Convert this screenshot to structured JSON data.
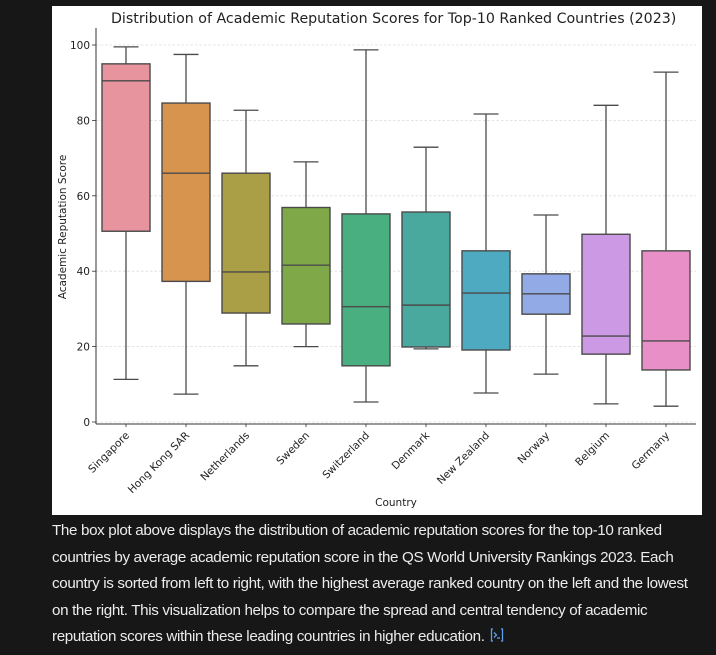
{
  "chart_data": {
    "type": "box",
    "title": "Distribution of Academic Reputation Scores for Top-10 Ranked Countries (2023)",
    "xlabel": "Country",
    "ylabel": "Academic Reputation Score",
    "ylim": [
      0,
      104
    ],
    "yticks": [
      0,
      20,
      40,
      60,
      80,
      100
    ],
    "ytick_labels": [
      "0",
      "20",
      "40",
      "60",
      "80",
      "100"
    ],
    "grid": true,
    "categories": [
      "Singapore",
      "Hong Kong SAR",
      "Netherlands",
      "Sweden",
      "Switzerland",
      "Denmark",
      "New Zealand",
      "Norway",
      "Belgium",
      "Germany"
    ],
    "series": [
      {
        "name": "Singapore",
        "whislo": 11.3,
        "q1": 50.6,
        "med": 90.5,
        "q3": 95.0,
        "whishi": 99.5,
        "color": "#e8949f"
      },
      {
        "name": "Hong Kong SAR",
        "whislo": 7.4,
        "q1": 37.3,
        "med": 66.0,
        "q3": 84.6,
        "whishi": 97.5,
        "color": "#d6944f"
      },
      {
        "name": "Netherlands",
        "whislo": 14.9,
        "q1": 28.9,
        "med": 39.8,
        "q3": 66.0,
        "whishi": 82.7,
        "color": "#aa9e46"
      },
      {
        "name": "Sweden",
        "whislo": 20.0,
        "q1": 26.0,
        "med": 41.6,
        "q3": 56.9,
        "whishi": 69.0,
        "color": "#7fa948"
      },
      {
        "name": "Switzerland",
        "whislo": 5.3,
        "q1": 14.9,
        "med": 30.6,
        "q3": 55.2,
        "whishi": 98.7,
        "color": "#4aaf80"
      },
      {
        "name": "Denmark",
        "whislo": 19.4,
        "q1": 19.9,
        "med": 31.0,
        "q3": 55.7,
        "whishi": 72.9,
        "color": "#4aa99f"
      },
      {
        "name": "New Zealand",
        "whislo": 7.7,
        "q1": 19.1,
        "med": 34.2,
        "q3": 45.4,
        "whishi": 81.7,
        "color": "#4eaac1"
      },
      {
        "name": "Norway",
        "whislo": 12.7,
        "q1": 28.6,
        "med": 34.0,
        "q3": 39.3,
        "whishi": 54.9,
        "color": "#92aae6"
      },
      {
        "name": "Belgium",
        "whislo": 4.8,
        "q1": 18.0,
        "med": 22.8,
        "q3": 49.8,
        "whishi": 84.0,
        "color": "#cc9ae5"
      },
      {
        "name": "Germany",
        "whislo": 4.2,
        "q1": 13.8,
        "med": 21.5,
        "q3": 45.4,
        "whishi": 92.8,
        "color": "#e98fc8"
      }
    ]
  },
  "caption": {
    "text": "The box plot above displays the distribution of academic reputation scores for the top-10 ranked countries by average academic reputation score in the QS World University Rankings 2023. Each country is sorted from left to right, with the highest average ranked country on the left and the lowest on the right. This visualization helps to compare the spread and central tendency of academic reputation scores within these leading countries in higher education.",
    "icon": "code-terminal-icon",
    "icon_color": "#5b9ee8"
  }
}
